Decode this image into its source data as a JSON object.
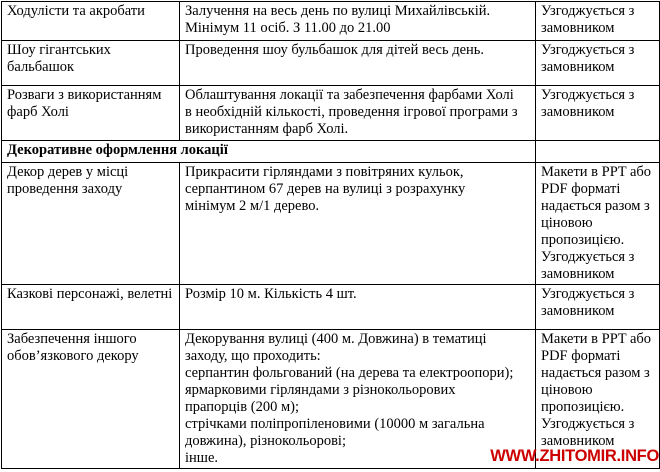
{
  "table": {
    "border_color": "#000000",
    "rows": [
      {
        "kind": "data",
        "item": [
          "Ходулісти та акробати"
        ],
        "description": [
          "Залучення на весь день по вулиці Михайлівській.",
          "Мінімум 11 осіб. З 11.00 до 21.00"
        ],
        "approval": [
          "Узгоджується з",
          "замовником"
        ]
      },
      {
        "kind": "data",
        "item": [
          "Шоу гігантських",
          "бальбашок"
        ],
        "description": [
          "Проведення шоу бульбашок для дітей весь день."
        ],
        "approval": [
          "Узгоджується з",
          "замовником"
        ]
      },
      {
        "kind": "data",
        "item": [
          "Розваги з використанням",
          "фарб Холі"
        ],
        "description": [
          "Облаштування локації та забезпечення фарбами Холі",
          "в необхідній кількості, проведення ігрової програми з",
          "використанням фарб Холі."
        ],
        "approval": [
          "Узгоджується з",
          "замовником"
        ]
      },
      {
        "kind": "section",
        "title": "Декоративне оформлення локації"
      },
      {
        "kind": "data",
        "item": [
          "Декор дерев у місці",
          "проведення заходу"
        ],
        "description": [
          "Прикрасити гірляндами з повітряних кульок,",
          "серпантином 67 дерев на вулиці з розрахунку",
          "мінімум 2 м/1 дерево."
        ],
        "approval": [
          "Макети в PPT або",
          "PDF форматі",
          "надається разом з",
          "ціновою",
          "пропозицією.",
          "Узгоджується з",
          "замовником"
        ]
      },
      {
        "kind": "data",
        "item": [
          "Казкові персонажі, велетні"
        ],
        "description": [
          "Розмір 10 м. Кількість 4 шт."
        ],
        "approval": [
          "Узгоджується з",
          "замовником"
        ]
      },
      {
        "kind": "data",
        "item": [
          "Забезпечення іншого",
          "обов’язкового декору"
        ],
        "description": [
          "Декорування вулиці (400 м. Довжина) в тематиці",
          "заходу, що проходить:",
          "серпантин фольгований (на дерева та електроопори);",
          "ярмарковими гірляндами з різнокольорових",
          "прапорців (200 м);",
          "стрічками поліпропіленовими (10000 м загальна",
          "довжина), різнокольорові;",
          "інше."
        ],
        "approval": [
          "Макети в PPT або",
          "PDF форматі",
          "надається разом з",
          "ціновою",
          "пропозицією.",
          "Узгоджується з",
          "замовником"
        ]
      }
    ]
  },
  "watermark": {
    "text": "WWW.ZHITOMIR.INFO",
    "color": "#cc0000"
  }
}
